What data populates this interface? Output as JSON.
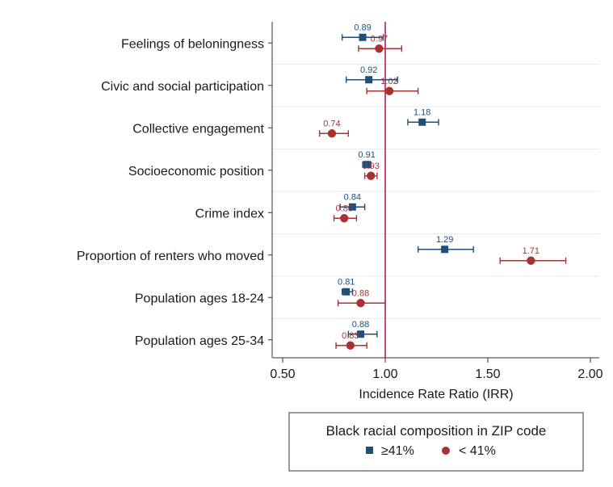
{
  "chart_data": {
    "type": "scatter",
    "orientation": "horizontal",
    "categories": [
      "Feelings of beloningness",
      "Civic and social participation",
      "Collective engagement",
      "Socioeconomic position",
      "Crime index",
      "Proportion of renters who moved",
      "Population ages 18-24",
      "Population ages 25-34"
    ],
    "series": [
      {
        "name": "≥41%",
        "color": "#1f4e79",
        "marker": "square",
        "values": [
          0.89,
          0.92,
          1.18,
          0.91,
          0.84,
          1.29,
          0.81,
          0.88
        ],
        "labels": [
          "0.89",
          "0.92",
          "1.18",
          "0.91",
          "0.84",
          "1.29",
          "0.81",
          "0.88"
        ],
        "ci_low": [
          0.79,
          0.81,
          1.11,
          0.89,
          0.78,
          1.16,
          0.79,
          0.82
        ],
        "ci_high": [
          0.99,
          1.06,
          1.26,
          0.93,
          0.9,
          1.43,
          0.84,
          0.96
        ]
      },
      {
        "name": "< 41%",
        "color": "#a83232",
        "marker": "circle",
        "values": [
          0.97,
          1.02,
          0.74,
          0.93,
          0.8,
          1.71,
          0.88,
          0.83
        ],
        "labels": [
          "0.97",
          "1.02",
          "0.74",
          "0.93",
          "0.80",
          "1.71",
          "0.88",
          "0.83"
        ],
        "ci_low": [
          0.87,
          0.91,
          0.68,
          0.9,
          0.75,
          1.56,
          0.77,
          0.76
        ],
        "ci_high": [
          1.08,
          1.16,
          0.82,
          0.96,
          0.86,
          1.88,
          1.0,
          0.91
        ]
      }
    ],
    "xlabel": "Incidence Rate Ratio (IRR)",
    "xticks": [
      "0.50",
      "1.00",
      "1.50",
      "2.00"
    ],
    "xlim": [
      0.5,
      2.0
    ],
    "reference_line": {
      "x": 1.0,
      "color": "#c2185b"
    },
    "grid": true,
    "legend": {
      "title": "Black racial composition in ZIP code",
      "placement": "bottom-center"
    }
  }
}
